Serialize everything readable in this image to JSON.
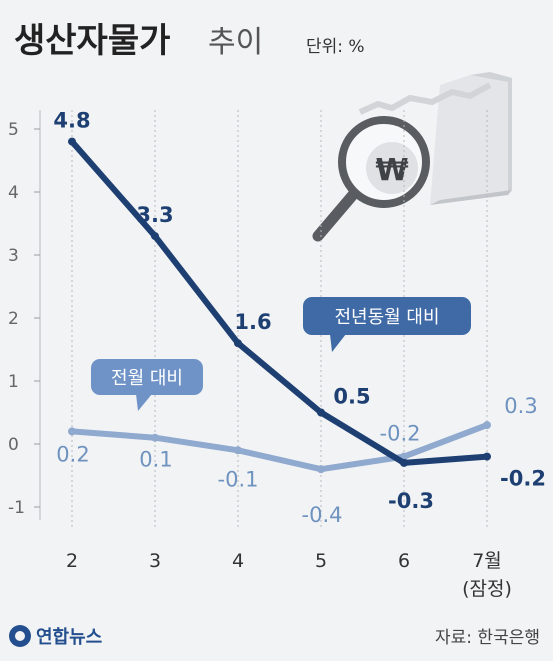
{
  "chart_data": {
    "type": "line",
    "title": "생산자물가",
    "subtitle": "추이",
    "unit": "단위: %",
    "categories": [
      {
        "main": "2",
        "sub": ""
      },
      {
        "main": "3",
        "sub": ""
      },
      {
        "main": "4",
        "sub": ""
      },
      {
        "main": "5",
        "sub": ""
      },
      {
        "main": "6",
        "sub": ""
      },
      {
        "main": "7월",
        "sub": "(잠정)"
      }
    ],
    "y_ticks": [
      5,
      4,
      3,
      2,
      1,
      0,
      -1
    ],
    "ylim": [
      -1,
      5
    ],
    "grid": "vertical-dotted",
    "series": [
      {
        "name": "전년동월 대비",
        "color": "#1d3f72",
        "values": [
          4.8,
          3.3,
          1.6,
          0.5,
          -0.3,
          -0.2
        ],
        "labels": [
          "4.8",
          "3.3",
          "1.6",
          "0.5",
          "-0.3",
          "-0.2"
        ]
      },
      {
        "name": "전월 대비",
        "color": "#8fa9cf",
        "values": [
          0.2,
          0.1,
          -0.1,
          -0.4,
          -0.2,
          0.3
        ],
        "labels": [
          "0.2",
          "0.1",
          "-0.1",
          "-0.4",
          "-0.2",
          "0.3"
        ]
      }
    ]
  },
  "footer": {
    "logo_text": "연합뉴스",
    "source": "자료: 한국은행"
  },
  "icons": {
    "illustration": "magnifier-won-chart-icon",
    "logo": "yonhap-logo-icon"
  }
}
